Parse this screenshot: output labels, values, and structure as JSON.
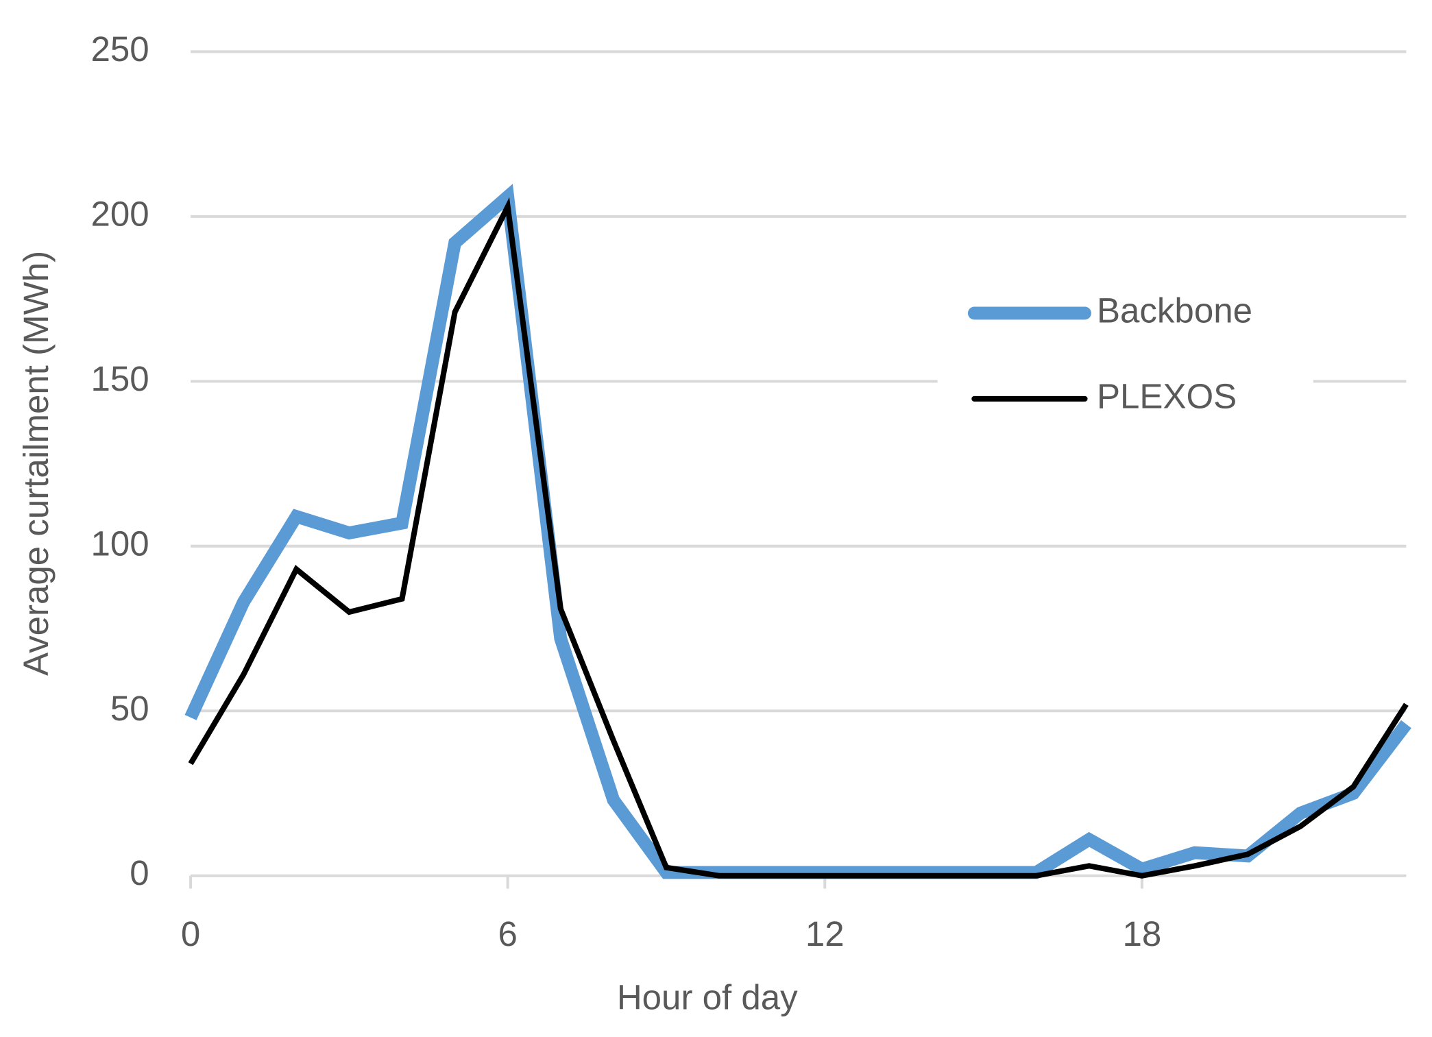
{
  "chart_data": {
    "type": "line",
    "x": [
      0,
      1,
      2,
      3,
      4,
      5,
      6,
      7,
      8,
      9,
      10,
      11,
      12,
      13,
      14,
      15,
      16,
      17,
      18,
      19,
      20,
      21,
      22,
      23
    ],
    "series": [
      {
        "name": "Backbone",
        "color": "#5b9bd5",
        "values": [
          48,
          83,
          109,
          104,
          107,
          192,
          206,
          72,
          23,
          1,
          1,
          1,
          1,
          1,
          1,
          1,
          1,
          11,
          2,
          7,
          6,
          19,
          25,
          46
        ]
      },
      {
        "name": "PLEXOS",
        "color": "#000000",
        "values": [
          34,
          61,
          93,
          80,
          84,
          171,
          203,
          81,
          41,
          2.5,
          0,
          0,
          0,
          0,
          0,
          0,
          0,
          3,
          0,
          3,
          6.5,
          15,
          27,
          52
        ]
      }
    ],
    "xlabel": "Hour of day",
    "ylabel": "Average curtailment (MWh)",
    "xlim": [
      0,
      23
    ],
    "xticks": [
      0,
      6,
      12,
      18
    ],
    "ylim": [
      0,
      250
    ],
    "yticks": [
      0,
      50,
      100,
      150,
      200,
      250
    ],
    "grid": true,
    "legend": "right"
  }
}
